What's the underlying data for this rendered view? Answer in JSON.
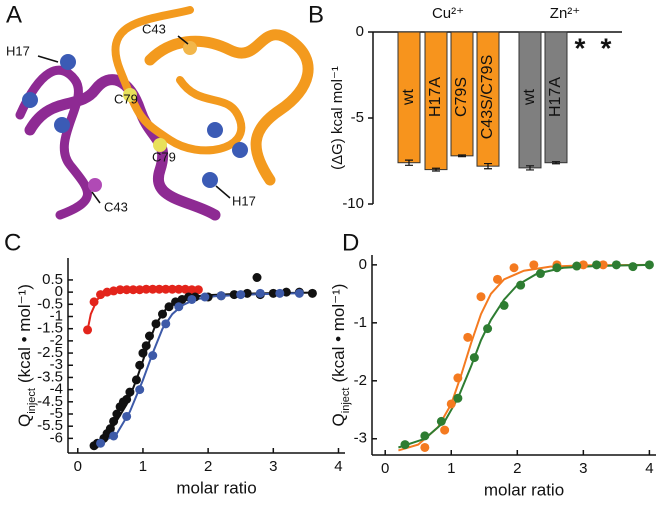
{
  "structure": {
    "panel": "A",
    "annotations": [
      "H17",
      "C43",
      "C79",
      "C79",
      "C43",
      "H17"
    ]
  },
  "chart_data": [
    {
      "type": "bar",
      "panel": "B",
      "ylabel": "(ΔG) kcal mol⁻¹",
      "categories": [
        "wt",
        "H17A",
        "C79S",
        "C43S/C79S",
        "wt",
        "H17A",
        "*",
        "*"
      ],
      "series": [
        {
          "name": "Cu²⁺",
          "color": "#f7941d",
          "values": [
            -7.6,
            -8.0,
            -7.2,
            -7.8,
            null,
            null,
            null,
            null
          ],
          "errors": [
            0.15,
            0.08,
            0.05,
            0.15,
            null,
            null,
            null,
            null
          ]
        },
        {
          "name": "Zn²⁺",
          "color": "#7f7f7f",
          "values": [
            null,
            null,
            null,
            null,
            -7.9,
            -7.6,
            null,
            null
          ],
          "errors": [
            null,
            null,
            null,
            null,
            0.12,
            0.06,
            null,
            null
          ]
        }
      ],
      "ylim": [
        -10,
        0
      ],
      "yticks": [
        0,
        -5,
        -10
      ]
    },
    {
      "type": "scatter",
      "panel": "C",
      "xlabel": "molar ratio",
      "ylabel": {
        "main": "Q",
        "sub": "inject",
        "unit": "(kcal • mol⁻¹)"
      },
      "xlim": [
        -0.15,
        4.1
      ],
      "xticks": [
        0,
        1,
        2,
        3,
        4
      ],
      "ylim": [
        -6.6,
        1.4
      ],
      "yticks": [
        0.5,
        0,
        -0.5,
        -1,
        -1.5,
        -2,
        -2.5,
        -3,
        -3.5,
        -4,
        -4.5,
        -5,
        -5.5,
        -6
      ],
      "series": [
        {
          "mode": "line",
          "color": "#e3241b",
          "x": [
            0.15,
            0.2,
            0.3,
            0.4,
            0.5,
            0.7,
            1.0,
            1.4,
            1.85
          ],
          "values": [
            -1.55,
            -0.9,
            -0.3,
            -0.1,
            0,
            0.07,
            0.1,
            0.1,
            0.1
          ]
        },
        {
          "mode": "line",
          "color": "#111111",
          "x": [
            0.25,
            0.5,
            0.75,
            0.9,
            1.0,
            1.1,
            1.2,
            1.35,
            1.5,
            1.7,
            2.0,
            2.5,
            3.0,
            3.6
          ],
          "values": [
            -6.3,
            -5.7,
            -4.6,
            -3.6,
            -2.8,
            -2.0,
            -1.3,
            -0.7,
            -0.4,
            -0.2,
            -0.12,
            -0.07,
            -0.04,
            -0.02
          ]
        },
        {
          "mode": "line",
          "color": "#3d5aa8",
          "x": [
            0.35,
            0.6,
            0.8,
            1.0,
            1.15,
            1.3,
            1.45,
            1.6,
            1.8,
            2.1,
            2.6,
            3.1,
            3.4
          ],
          "values": [
            -6.2,
            -5.8,
            -4.9,
            -3.6,
            -2.5,
            -1.5,
            -0.9,
            -0.55,
            -0.3,
            -0.17,
            -0.1,
            -0.06,
            -0.05
          ]
        },
        {
          "mode": "markers",
          "color": "#e3241b",
          "x": [
            0.15,
            0.25,
            0.35,
            0.45,
            0.55,
            0.65,
            0.75,
            0.85,
            0.95,
            1.05,
            1.15,
            1.25,
            1.35,
            1.45,
            1.55,
            1.65,
            1.75,
            1.85
          ],
          "values": [
            -1.55,
            -0.4,
            -0.1,
            0,
            0.05,
            0.1,
            0.1,
            0.1,
            0.1,
            0.12,
            0.12,
            0.12,
            0.12,
            0.12,
            0.12,
            0.12,
            0.1,
            0.1
          ]
        },
        {
          "mode": "markers",
          "color": "#111111",
          "x": [
            0.25,
            0.3,
            0.4,
            0.45,
            0.5,
            0.55,
            0.6,
            0.65,
            0.7,
            0.75,
            0.8,
            0.9,
            0.95,
            1.0,
            1.05,
            1.1,
            1.2,
            1.3,
            1.4,
            1.5,
            1.6,
            1.7,
            1.8,
            2.0,
            2.2,
            2.4,
            2.6,
            2.75,
            2.8,
            3.0,
            3.2,
            3.4,
            3.6
          ],
          "values": [
            -6.3,
            -6.2,
            -6.0,
            -5.8,
            -5.6,
            -5.3,
            -5.0,
            -4.7,
            -4.5,
            -4.4,
            -4.1,
            -3.6,
            -3.0,
            -2.5,
            -2.2,
            -1.8,
            -1.3,
            -0.9,
            -0.6,
            -0.4,
            -0.3,
            -0.2,
            -0.2,
            -0.2,
            -0.15,
            -0.1,
            -0.05,
            0.6,
            -0.1,
            -0.05,
            0,
            0,
            -0.05
          ]
        },
        {
          "mode": "markers",
          "color": "#3d5aa8",
          "x": [
            0.35,
            0.55,
            0.75,
            0.95,
            1.15,
            1.35,
            1.55,
            1.75,
            1.95,
            2.2,
            2.5,
            2.8,
            3.1,
            3.4
          ],
          "values": [
            -6.2,
            -5.9,
            -5.1,
            -4.0,
            -2.6,
            -1.3,
            -0.6,
            -0.3,
            -0.2,
            -0.15,
            -0.1,
            -0.05,
            -0.05,
            -0.05
          ]
        }
      ]
    },
    {
      "type": "scatter",
      "panel": "D",
      "xlabel": "molar ratio",
      "ylabel": {
        "main": "Q",
        "sub": "inject",
        "unit": "(kcal • mol⁻¹)"
      },
      "xlim": [
        -0.2,
        4.1
      ],
      "xticks": [
        0,
        1,
        2,
        3,
        4
      ],
      "ylim": [
        -3.28,
        0.17
      ],
      "yticks": [
        0,
        -1,
        -2,
        -3
      ],
      "series": [
        {
          "mode": "line",
          "color": "#f47a20",
          "x": [
            0.2,
            0.5,
            0.8,
            1.0,
            1.15,
            1.3,
            1.45,
            1.6,
            1.8,
            2.1,
            2.5,
            3.0,
            4.0
          ],
          "values": [
            -3.2,
            -3.1,
            -2.8,
            -2.4,
            -1.9,
            -1.35,
            -0.85,
            -0.5,
            -0.25,
            -0.1,
            -0.03,
            -0.01,
            0
          ]
        },
        {
          "mode": "line",
          "color": "#2e7d32",
          "x": [
            0.2,
            0.6,
            0.9,
            1.1,
            1.3,
            1.45,
            1.6,
            1.8,
            2.0,
            2.3,
            2.7,
            3.2,
            4.0
          ],
          "values": [
            -3.15,
            -3.0,
            -2.7,
            -2.3,
            -1.75,
            -1.3,
            -0.95,
            -0.6,
            -0.35,
            -0.15,
            -0.05,
            -0.02,
            0
          ]
        },
        {
          "mode": "markers",
          "color": "#f47a20",
          "x": [
            0.6,
            0.9,
            1.0,
            1.1,
            1.25,
            1.45,
            1.7,
            1.95,
            2.25,
            2.6,
            3.0,
            3.3
          ],
          "values": [
            -3.15,
            -2.85,
            -2.4,
            -1.95,
            -1.25,
            -0.55,
            -0.25,
            -0.05,
            0,
            0,
            0,
            0
          ]
        },
        {
          "mode": "markers",
          "color": "#2e7d32",
          "x": [
            0.3,
            0.6,
            0.85,
            1.1,
            1.35,
            1.55,
            1.8,
            2.05,
            2.35,
            2.6,
            2.9,
            3.2,
            3.5,
            3.75,
            4.0
          ],
          "values": [
            -3.1,
            -2.95,
            -2.7,
            -2.3,
            -1.6,
            -1.1,
            -0.7,
            -0.35,
            -0.15,
            -0.05,
            -0.02,
            0,
            0,
            -0.03,
            0
          ]
        }
      ]
    }
  ]
}
